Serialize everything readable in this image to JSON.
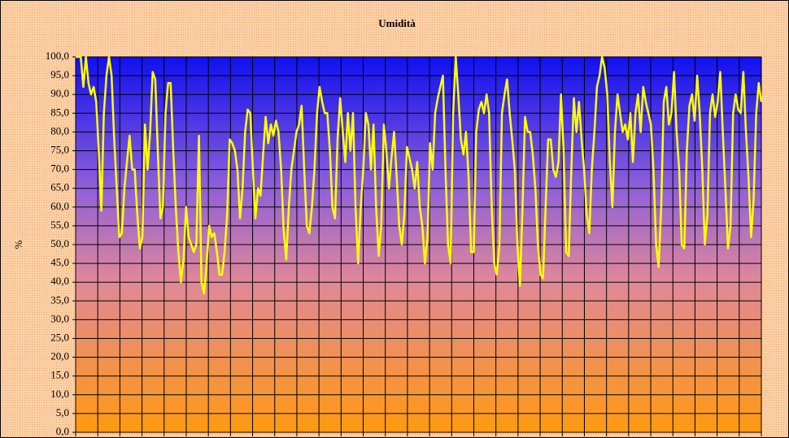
{
  "chart_data": {
    "type": "line",
    "title": "Umidità",
    "y_label": "%",
    "ylim": [
      0,
      100
    ],
    "yticks": [
      {
        "value": 0,
        "label": "0,0"
      },
      {
        "value": 5,
        "label": "5,0"
      },
      {
        "value": 10,
        "label": "10,0"
      },
      {
        "value": 15,
        "label": "15,0"
      },
      {
        "value": 20,
        "label": "20,0"
      },
      {
        "value": 25,
        "label": "25,0"
      },
      {
        "value": 30,
        "label": "30,0"
      },
      {
        "value": 35,
        "label": "35,0"
      },
      {
        "value": 40,
        "label": "40,0"
      },
      {
        "value": 45,
        "label": "45,0"
      },
      {
        "value": 50,
        "label": "50,0"
      },
      {
        "value": 55,
        "label": "55,0"
      },
      {
        "value": 60,
        "label": "60,0"
      },
      {
        "value": 65,
        "label": "65,0"
      },
      {
        "value": 70,
        "label": "70,0"
      },
      {
        "value": 75,
        "label": "75,0"
      },
      {
        "value": 80,
        "label": "80,0"
      },
      {
        "value": 85,
        "label": "85,0"
      },
      {
        "value": 90,
        "label": "90,0"
      },
      {
        "value": 95,
        "label": "95,0"
      },
      {
        "value": 100,
        "label": "100,0"
      }
    ],
    "grid": true,
    "color": "#ffff00",
    "values": [
      100,
      100,
      100,
      92,
      100,
      93,
      90,
      92,
      88,
      75,
      59,
      85,
      95,
      100,
      95,
      78,
      65,
      52,
      53,
      65,
      72,
      79,
      70,
      70,
      58,
      49,
      52,
      82,
      70,
      80,
      96,
      94,
      75,
      57,
      60,
      85,
      93,
      93,
      75,
      60,
      48,
      40,
      46,
      60,
      52,
      50,
      48,
      50,
      79,
      40,
      37,
      45,
      55,
      52,
      53,
      48,
      42,
      42,
      48,
      58,
      78,
      77,
      75,
      70,
      57,
      65,
      80,
      86,
      85,
      70,
      57,
      65,
      63,
      74,
      84,
      77,
      82,
      79,
      83,
      80,
      70,
      54,
      46,
      60,
      70,
      75,
      80,
      82,
      87,
      70,
      55,
      53,
      60,
      70,
      85,
      92,
      88,
      85,
      85,
      75,
      60,
      57,
      78,
      89,
      80,
      72,
      85,
      75,
      85,
      60,
      45,
      60,
      70,
      85,
      82,
      70,
      82,
      60,
      47,
      55,
      82,
      75,
      65,
      73,
      80,
      68,
      55,
      50,
      58,
      76,
      73,
      70,
      65,
      72,
      60,
      55,
      45,
      52,
      77,
      70,
      85,
      89,
      92,
      95,
      70,
      50,
      45,
      85,
      100,
      90,
      78,
      74,
      80,
      68,
      48,
      48,
      80,
      86,
      88,
      85,
      90,
      85,
      60,
      45,
      42,
      50,
      85,
      90,
      94,
      85,
      78,
      70,
      50,
      39,
      60,
      84,
      80,
      80,
      74,
      65,
      50,
      42,
      41,
      60,
      78,
      78,
      70,
      68,
      72,
      90,
      75,
      48,
      47,
      70,
      89,
      80,
      88,
      78,
      70,
      58,
      53,
      70,
      80,
      92,
      95,
      100,
      97,
      90,
      72,
      60,
      80,
      90,
      85,
      80,
      82,
      78,
      85,
      72,
      85,
      90,
      80,
      92,
      88,
      85,
      82,
      70,
      50,
      44,
      60,
      88,
      92,
      82,
      85,
      96,
      80,
      70,
      50,
      49,
      75,
      87,
      90,
      83,
      95,
      85,
      70,
      50,
      58,
      85,
      90,
      84,
      88,
      96,
      80,
      65,
      49,
      55,
      85,
      90,
      86,
      85,
      96,
      80,
      68,
      52,
      62,
      85,
      93,
      88
    ]
  }
}
